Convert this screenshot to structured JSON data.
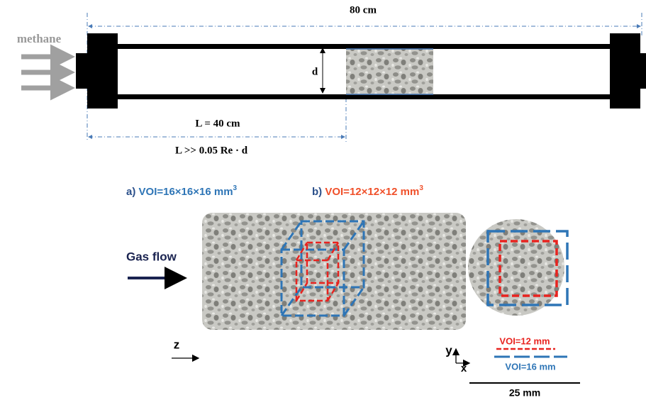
{
  "top": {
    "length": "80 cm",
    "gas": "methane",
    "diameter": "d",
    "entry_length": "L = 40 cm",
    "condition": "L >> 0.05 Re · d"
  },
  "bottom": {
    "label_a": {
      "prefix": "a)",
      "text": "VOI=16×16×16 mm",
      "sup": "3"
    },
    "label_b": {
      "prefix": "b)",
      "text": "VOI=12×12×12 mm",
      "sup": "3"
    },
    "flow": "Gas flow",
    "axis_z": "z",
    "axis_y": "y",
    "axis_x": "x",
    "legend_red": "VOI=12 mm",
    "legend_blue": "VOI=16 mm",
    "scale": "25 mm"
  }
}
